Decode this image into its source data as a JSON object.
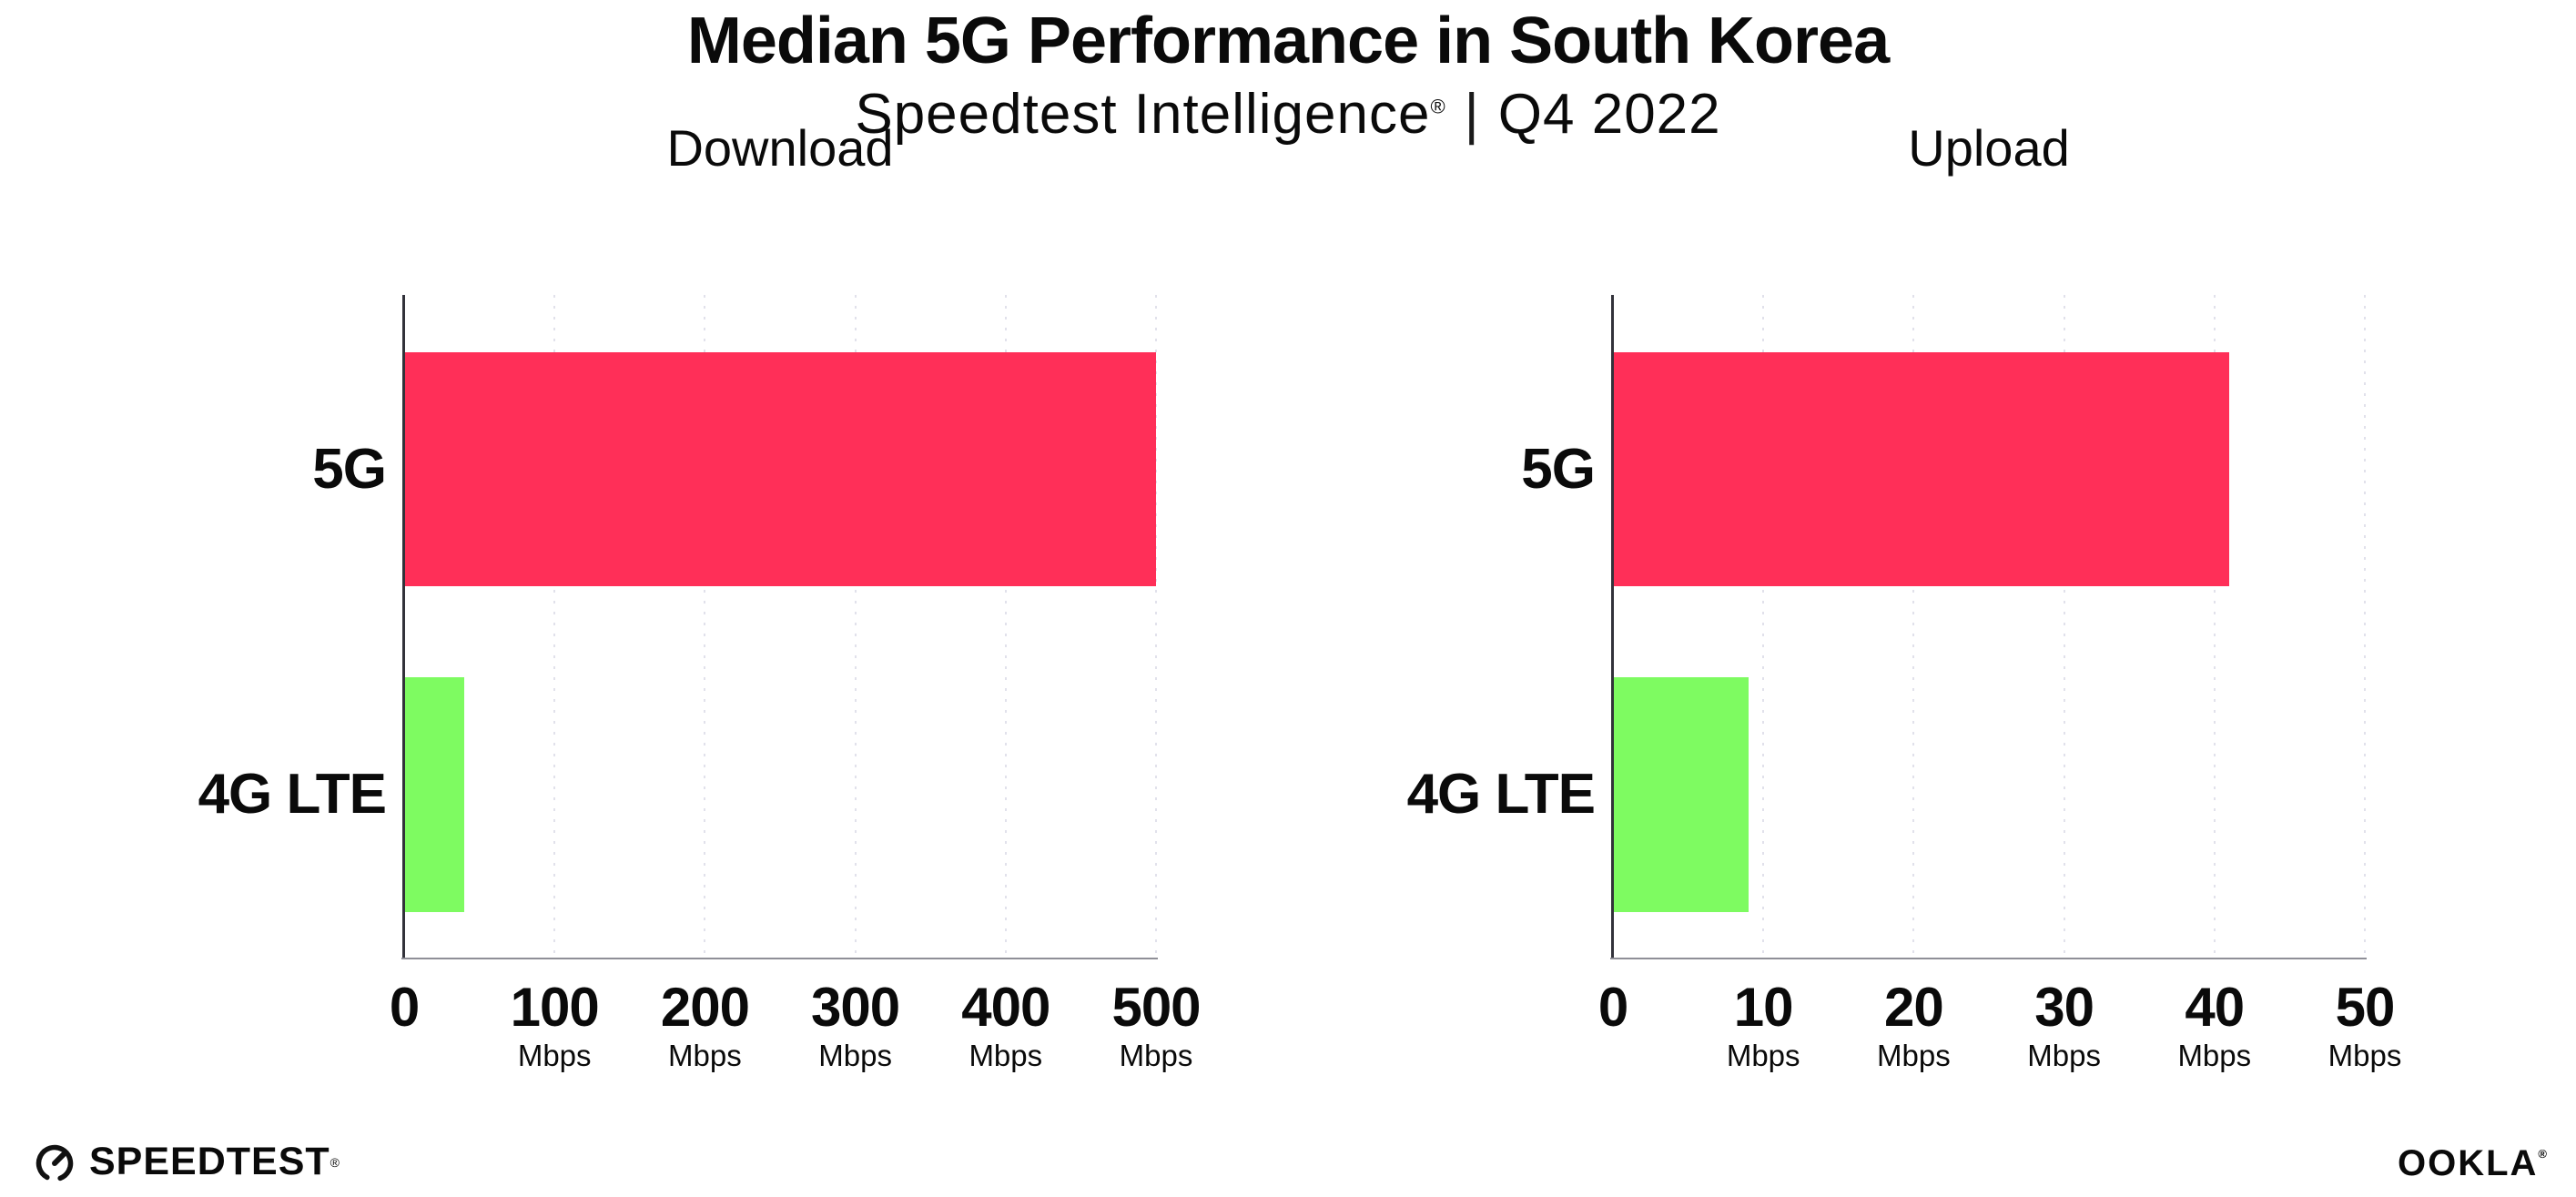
{
  "header": {
    "title": "Median 5G Performance in South Korea",
    "subtitle_brand": "Speedtest Intelligence",
    "subtitle_reg": "®",
    "subtitle_separator": "|",
    "subtitle_period": "Q4 2022"
  },
  "chart_data": [
    {
      "type": "bar",
      "orientation": "horizontal",
      "title": "Download",
      "categories": [
        "5G",
        "4G LTE"
      ],
      "values": [
        500,
        40
      ],
      "unit": "Mbps",
      "xlim": [
        0,
        500
      ],
      "x_ticks": [
        0,
        100,
        200,
        300,
        400,
        500
      ],
      "tick_unit": "Mbps",
      "bar_colors": [
        "#ff2f58",
        "#7efb61"
      ],
      "grid": "dotted-vertical",
      "legend": "none"
    },
    {
      "type": "bar",
      "orientation": "horizontal",
      "title": "Upload",
      "categories": [
        "5G",
        "4G LTE"
      ],
      "values": [
        41,
        9
      ],
      "unit": "Mbps",
      "xlim": [
        0,
        50
      ],
      "x_ticks": [
        0,
        10,
        20,
        30,
        40,
        50
      ],
      "tick_unit": "Mbps",
      "bar_colors": [
        "#ff2f58",
        "#7efb61"
      ],
      "grid": "dotted-vertical",
      "legend": "none"
    }
  ],
  "footer": {
    "speedtest_logo_text": "SPEEDTEST",
    "speedtest_reg": "®",
    "ookla_logo_text": "OOKLA",
    "ookla_reg": "®"
  },
  "colors": {
    "bar_5g": "#ff2f58",
    "bar_4g": "#7efb61",
    "y_axis": "#32323a",
    "x_axis": "#8f8f97",
    "gridline": "#e1e1eb",
    "text": "#0a0a0a",
    "background": "#ffffff"
  }
}
